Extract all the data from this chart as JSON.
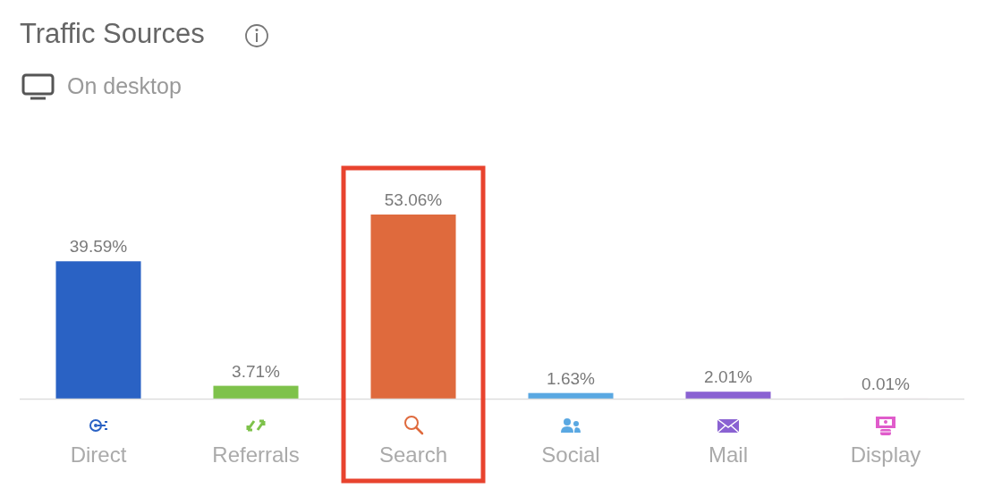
{
  "chart_data": {
    "type": "bar",
    "title": "Traffic Sources",
    "subtitle": "On desktop",
    "categories": [
      "Direct",
      "Referrals",
      "Search",
      "Social",
      "Mail",
      "Display"
    ],
    "values": [
      39.59,
      3.71,
      53.06,
      1.63,
      2.01,
      0.01
    ],
    "colors": [
      "#2a62c4",
      "#7ec24b",
      "#df6a3d",
      "#5aa8e2",
      "#8a62d2",
      "#e05ccb"
    ],
    "value_labels": [
      "39.59%",
      "3.71%",
      "53.06%",
      "1.63%",
      "2.01%",
      "0.01%"
    ]
  }
}
